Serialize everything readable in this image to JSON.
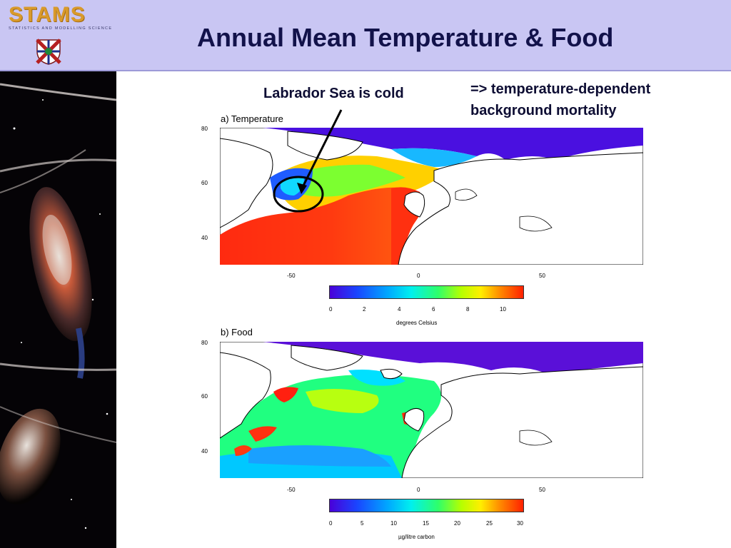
{
  "header": {
    "logo_text": "STAMS",
    "logo_subtitle": "STATISTICS AND MODELLING SCIENCE",
    "title": "Annual Mean Temperature & Food"
  },
  "annotations": {
    "labrador": "Labrador Sea is cold",
    "mortality_line1": "=> temperature-dependent",
    "mortality_line2": "background mortality"
  },
  "maps": {
    "temperature": {
      "title": "a) Temperature",
      "lat_labels": [
        "80",
        "60",
        "40"
      ],
      "lon_labels": [
        "-50",
        "0",
        "50"
      ],
      "colorbar_ticks": [
        "0",
        "2",
        "4",
        "6",
        "8",
        "10"
      ],
      "colorbar_unit": "degrees Celsius"
    },
    "food": {
      "title": "b) Food",
      "lat_labels": [
        "80",
        "60",
        "40"
      ],
      "lon_labels": [
        "-50",
        "0",
        "50"
      ],
      "colorbar_ticks": [
        "0",
        "5",
        "10",
        "15",
        "20",
        "25",
        "30"
      ],
      "colorbar_unit": "µg/litre carbon"
    }
  },
  "colors": {
    "header_bg": "#c9c6f3",
    "title_text": "#12124a",
    "cold": "#4a00d8",
    "warm": "#ff2000"
  }
}
